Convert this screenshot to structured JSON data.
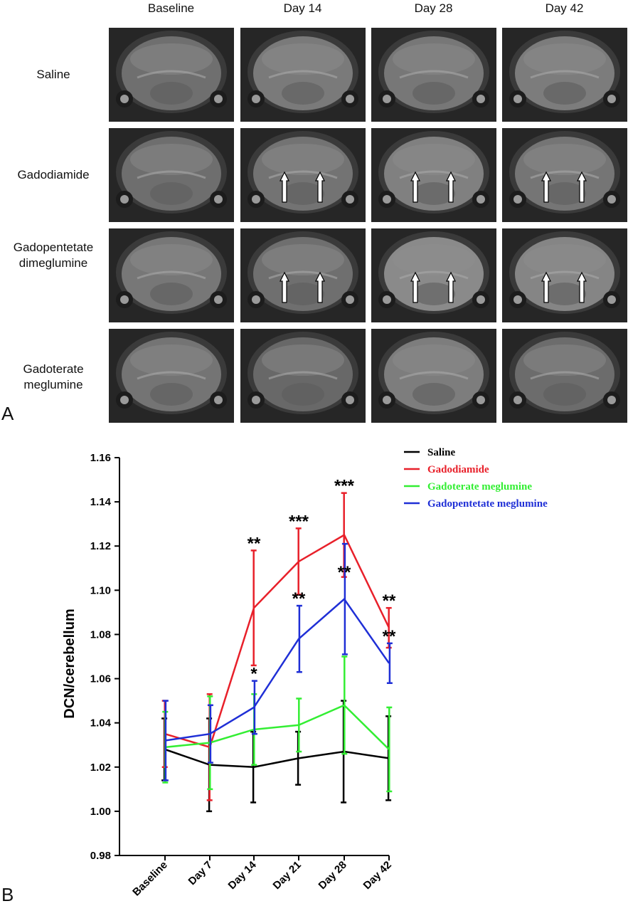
{
  "panel_a": {
    "letter": "A",
    "columns": [
      "Baseline",
      "Day 14",
      "Day 28",
      "Day 42"
    ],
    "rows": [
      {
        "label_lines": [
          "Saline"
        ],
        "arrows": [
          false,
          false,
          false,
          false
        ]
      },
      {
        "label_lines": [
          "Gadodiamide"
        ],
        "arrows": [
          false,
          true,
          true,
          true
        ]
      },
      {
        "label_lines": [
          "Gadopentetate",
          "dimeglumine"
        ],
        "arrows": [
          false,
          true,
          true,
          true
        ]
      },
      {
        "label_lines": [
          "Gadoterate",
          "meglumine"
        ],
        "arrows": [
          false,
          false,
          false,
          false
        ]
      }
    ]
  },
  "panel_b": {
    "letter": "B"
  },
  "chart_data": {
    "type": "line",
    "ylabel": "DCN/cerebellum",
    "xlabel": "",
    "categories": [
      "Baseline",
      "Day 7",
      "Day 14",
      "Day 21",
      "Day 28",
      "Day 42"
    ],
    "ylim": [
      0.98,
      1.16
    ],
    "yticks": [
      "0.98",
      "1.00",
      "1.02",
      "1.04",
      "1.06",
      "1.08",
      "1.10",
      "1.12",
      "1.14",
      "1.16"
    ],
    "legend_position": "top-right",
    "series": [
      {
        "name": "Saline",
        "color": "#000000",
        "values": [
          1.028,
          1.021,
          1.02,
          1.024,
          1.027,
          1.024
        ],
        "error": [
          0.014,
          0.021,
          0.016,
          0.012,
          0.023,
          0.019
        ]
      },
      {
        "name": "Gadodiamide",
        "color": "#e8202a",
        "values": [
          1.035,
          1.029,
          1.092,
          1.113,
          1.125,
          1.083
        ],
        "error": [
          0.015,
          0.024,
          0.026,
          0.015,
          0.019,
          0.009
        ]
      },
      {
        "name": "Gadoterate meglumine",
        "color": "#33ee33",
        "values": [
          1.029,
          1.031,
          1.037,
          1.039,
          1.048,
          1.028
        ],
        "error": [
          0.016,
          0.021,
          0.016,
          0.012,
          0.022,
          0.019
        ]
      },
      {
        "name": "Gadopentetate meglumine",
        "color": "#1f2fd6",
        "values": [
          1.032,
          1.035,
          1.047,
          1.078,
          1.096,
          1.067
        ],
        "error": [
          0.018,
          0.013,
          0.012,
          0.015,
          0.025,
          0.009
        ]
      }
    ],
    "annotations": [
      {
        "text": "**",
        "category": "Day 14",
        "y": 1.118,
        "color": "#000000"
      },
      {
        "text": "*",
        "category": "Day 14",
        "y": 1.059,
        "color": "#000000"
      },
      {
        "text": "***",
        "category": "Day 21",
        "y": 1.128,
        "color": "#000000"
      },
      {
        "text": "**",
        "category": "Day 21",
        "y": 1.093,
        "color": "#000000"
      },
      {
        "text": "***",
        "category": "Day 28",
        "y": 1.144,
        "color": "#000000"
      },
      {
        "text": "**",
        "category": "Day 28",
        "y": 1.105,
        "color": "#000000"
      },
      {
        "text": "**",
        "category": "Day 42",
        "y": 1.092,
        "color": "#000000"
      },
      {
        "text": "**",
        "category": "Day 42",
        "y": 1.076,
        "color": "#000000"
      }
    ]
  }
}
